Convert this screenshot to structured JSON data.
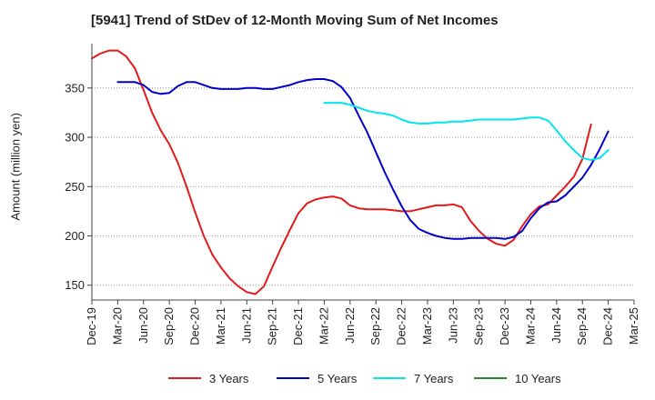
{
  "chart_data": {
    "type": "line",
    "title": "[5941]  Trend of StDev of 12-Month Moving Sum of Net Incomes",
    "ylabel": "Amount (million yen)",
    "xlabel": "",
    "ylim": [
      135,
      395
    ],
    "yticks": [
      150,
      200,
      250,
      300,
      350
    ],
    "xticks": [
      "Dec-19",
      "Mar-20",
      "Jun-20",
      "Sep-20",
      "Dec-20",
      "Mar-21",
      "Jun-21",
      "Sep-21",
      "Dec-21",
      "Mar-22",
      "Jun-22",
      "Sep-22",
      "Dec-22",
      "Mar-23",
      "Jun-23",
      "Sep-23",
      "Dec-23",
      "Mar-24",
      "Jun-24",
      "Sep-24",
      "Dec-24",
      "Mar-25"
    ],
    "grid": "horizontal dotted",
    "legend_position": "bottom",
    "series": [
      {
        "name": "3 Years",
        "color": "#e31a1c",
        "start_index": 0,
        "values": [
          380,
          385,
          388,
          388,
          382,
          370,
          348,
          325,
          307,
          293,
          274,
          250,
          224,
          200,
          181,
          168,
          157,
          149,
          143,
          141,
          149,
          169,
          188,
          206,
          223,
          233,
          237,
          239,
          240,
          238,
          231,
          228,
          227,
          227,
          227,
          226,
          225,
          225,
          227,
          229,
          231,
          231,
          232,
          229,
          215,
          205,
          197,
          192,
          190,
          196,
          210,
          222,
          230,
          232,
          241,
          250,
          260,
          278,
          313
        ]
      },
      {
        "name": "5 Years",
        "color": "#0000cc",
        "start_index": 3,
        "values": [
          356,
          356,
          356,
          353,
          346,
          344,
          345,
          352,
          356,
          356,
          353,
          350,
          349,
          349,
          349,
          350,
          350,
          349,
          349,
          351,
          353,
          356,
          358,
          359,
          359,
          357,
          351,
          340,
          322,
          305,
          285,
          265,
          247,
          230,
          216,
          207,
          203,
          200,
          198,
          197,
          197,
          198,
          198,
          198,
          198,
          197,
          199,
          205,
          218,
          228,
          234,
          235,
          241,
          250,
          259,
          272,
          288,
          306
        ]
      },
      {
        "name": "7 Years",
        "color": "#00e5ee",
        "start_index": 27,
        "values": [
          335,
          335,
          335,
          333,
          330,
          327,
          325,
          324,
          322,
          318,
          315,
          314,
          314,
          315,
          315,
          316,
          316,
          317,
          318,
          318,
          318,
          318,
          318,
          319,
          320,
          320,
          317,
          307,
          296,
          287,
          279,
          277,
          279,
          287
        ]
      },
      {
        "name": "10 Years",
        "color": "#228b22",
        "start_index": 0,
        "values": []
      }
    ]
  }
}
